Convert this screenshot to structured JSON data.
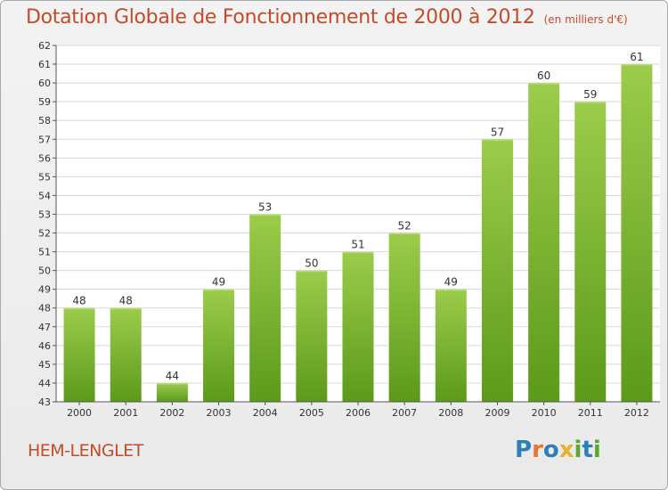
{
  "header": {
    "title": "Dotation Globale de Fonctionnement de 2000 à 2012",
    "subtitle": "(en milliers d'€)"
  },
  "footer": {
    "place": "HEM-LENGLET",
    "logo": {
      "text": "Proxiti",
      "letters": [
        {
          "char": "P",
          "color": "#2c7fb8"
        },
        {
          "char": "r",
          "color": "#e8762c"
        },
        {
          "char": "o",
          "color": "#2c7fb8"
        },
        {
          "char": "x",
          "color": "#e8b22c"
        },
        {
          "char": "i",
          "color": "#5aa832"
        },
        {
          "char": "t",
          "color": "#2c7fb8"
        },
        {
          "char": "i",
          "color": "#5aa832"
        }
      ]
    }
  },
  "colors": {
    "title": "#c44a2a",
    "bar_top": "#9ccc4c",
    "bar_bottom": "#5c9a1a",
    "grid": "#d8d8d8"
  },
  "chart_data": {
    "type": "bar",
    "categories": [
      "2000",
      "2001",
      "2002",
      "2003",
      "2004",
      "2005",
      "2006",
      "2007",
      "2008",
      "2009",
      "2010",
      "2011",
      "2012"
    ],
    "values": [
      48,
      48,
      44,
      49,
      53,
      50,
      51,
      52,
      49,
      57,
      60,
      59,
      61
    ],
    "ylim": [
      43,
      62
    ],
    "yticks": [
      43,
      44,
      45,
      46,
      47,
      48,
      49,
      50,
      51,
      52,
      53,
      54,
      55,
      56,
      57,
      58,
      59,
      60,
      61,
      62
    ],
    "grid": true,
    "title": "Dotation Globale de Fonctionnement de 2000 à 2012",
    "subtitle": "(en milliers d'€)"
  }
}
